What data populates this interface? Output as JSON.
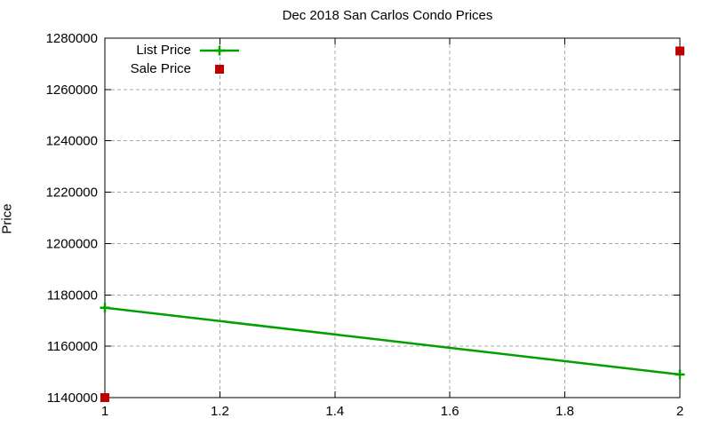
{
  "chart_data": {
    "type": "line",
    "title": "Dec 2018 San Carlos Condo Prices",
    "xlabel": "",
    "ylabel": "Price",
    "xlim": [
      1,
      2
    ],
    "ylim": [
      1140000,
      1280000
    ],
    "x_ticks": [
      1,
      1.2,
      1.4,
      1.6,
      1.8,
      2
    ],
    "x_tick_labels": [
      "1",
      "1.2",
      "1.4",
      "1.6",
      "1.8",
      "2"
    ],
    "y_ticks": [
      1140000,
      1160000,
      1180000,
      1200000,
      1220000,
      1240000,
      1260000,
      1280000
    ],
    "y_tick_labels": [
      "1140000",
      "1160000",
      "1180000",
      "1200000",
      "1220000",
      "1240000",
      "1260000",
      "1280000"
    ],
    "grid": true,
    "grid_color": "#a8a8a8",
    "border_color": "#000000",
    "background": "#ffffff",
    "legend_position": "top-left-inside",
    "series": [
      {
        "name": "List Price",
        "style": "linespoints",
        "marker": "plus",
        "color": "#00a000",
        "x": [
          1,
          2
        ],
        "values": [
          1175000,
          1149000
        ]
      },
      {
        "name": "Sale Price",
        "style": "points",
        "marker": "square",
        "color": "#c00000",
        "x": [
          1,
          2
        ],
        "values": [
          1140000,
          1275000
        ]
      }
    ]
  }
}
